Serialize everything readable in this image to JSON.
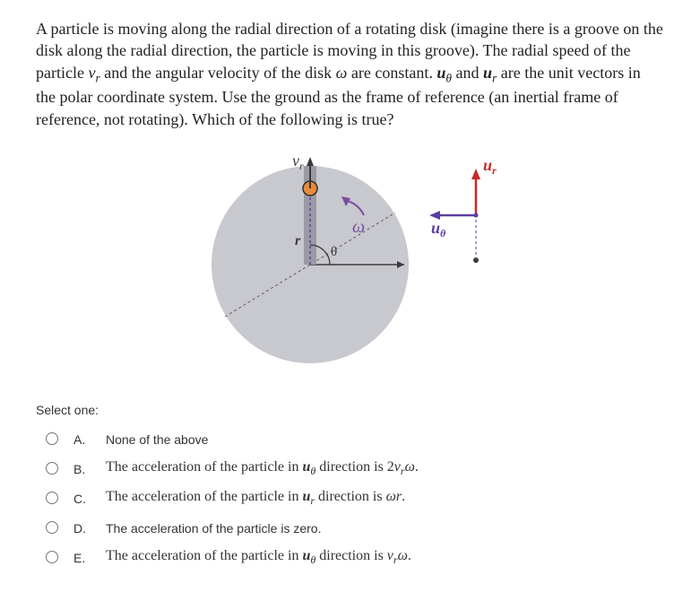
{
  "question": {
    "text_html": "A particle is moving along the radial direction of a rotating disk (imagine there is a groove on the disk along the radial direction, the particle is moving in this groove). The radial speed of the particle <span class='ital'>v<sub>r</sub></span> and the angular velocity of the disk <span class='ital'>ω</span> are constant. <span class='ital'><b>u</b><sub>θ</sub></span> and <span class='ital'><b>u</b><sub>r</sub></span> are the unit vectors in the polar coordinate system. Use the ground as the frame of reference (an inertial frame of reference, not rotating). Which of the following is true?"
  },
  "diagram": {
    "disk_fill": "#c8c8cf",
    "groove_fill": "#9a9aa4",
    "particle_fill": "#e78a3a",
    "particle_stroke": "#2d2d2d",
    "dashed_stroke": "#5b5b5b",
    "axis_stroke": "#3a3a3a",
    "arrow_color": "#3a3a3a",
    "omega_color": "#7a4ea0",
    "u_r_color": "#c62828",
    "u_theta_color": "#5b3ea0",
    "vr_label": "v",
    "vr_sub": "r",
    "r_label": "r",
    "theta_label": "θ",
    "omega_label": "ω",
    "u_r_label": "u",
    "u_r_sub": "r",
    "u_theta_label": "u",
    "u_theta_sub": "θ"
  },
  "select_label": "Select one:",
  "options": [
    {
      "letter": "A.",
      "html": "None of the above",
      "font": "arial"
    },
    {
      "letter": "B.",
      "html": "The acceleration of the particle in <span class='ital'><b>u</b><sub>θ</sub></span> direction is 2<span class='ital'>v<sub>r</sub>ω</span>.",
      "font": "serif"
    },
    {
      "letter": "C.",
      "html": "The acceleration of the particle in <span class='ital'><b>u</b><sub>r</sub></span> direction is <span class='ital'>ωr</span>.",
      "font": "serif"
    },
    {
      "letter": "D.",
      "html": "The acceleration of the particle is zero.",
      "font": "arial"
    },
    {
      "letter": "E.",
      "html": "The acceleration of the particle in <span class='ital'><b>u</b><sub>θ</sub></span> direction is <span class='ital'>v<sub>r</sub>ω</span>.",
      "font": "serif"
    }
  ]
}
